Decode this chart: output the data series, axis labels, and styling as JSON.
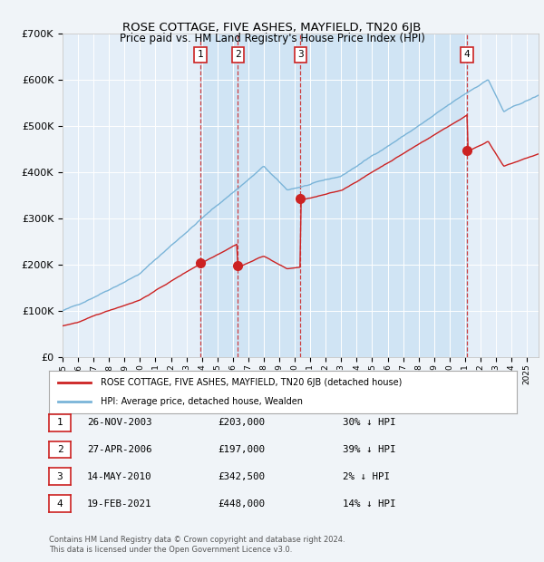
{
  "title": "ROSE COTTAGE, FIVE ASHES, MAYFIELD, TN20 6JB",
  "subtitle": "Price paid vs. HM Land Registry's House Price Index (HPI)",
  "ylim": [
    0,
    700000
  ],
  "yticks": [
    0,
    100000,
    200000,
    300000,
    400000,
    500000,
    600000,
    700000
  ],
  "ytick_labels": [
    "£0",
    "£100K",
    "£200K",
    "£300K",
    "£400K",
    "£500K",
    "£600K",
    "£700K"
  ],
  "bg_color": "#f0f4f8",
  "plot_bg_color": "#e4eef8",
  "sale_band_color": "#d0e4f4",
  "grid_color": "#ffffff",
  "hpi_color": "#7ab4d8",
  "price_color": "#cc2222",
  "legend_hpi_label": "HPI: Average price, detached house, Wealden",
  "legend_price_label": "ROSE COTTAGE, FIVE ASHES, MAYFIELD, TN20 6JB (detached house)",
  "sales": [
    {
      "num": 1,
      "date_f": 2003.9,
      "price": 203000,
      "label": "26-NOV-2003",
      "price_label": "£203,000"
    },
    {
      "num": 2,
      "date_f": 2006.32,
      "price": 197000,
      "label": "27-APR-2006",
      "price_label": "£197,000"
    },
    {
      "num": 3,
      "date_f": 2010.37,
      "price": 342500,
      "label": "14-MAY-2010",
      "price_label": "£342,500"
    },
    {
      "num": 4,
      "date_f": 2021.13,
      "price": 448000,
      "label": "19-FEB-2021",
      "price_label": "£448,000"
    }
  ],
  "table_rows": [
    {
      "num": 1,
      "date": "26-NOV-2003",
      "price": "£203,000",
      "pct": "30% ↓ HPI"
    },
    {
      "num": 2,
      "date": "27-APR-2006",
      "price": "£197,000",
      "pct": "39% ↓ HPI"
    },
    {
      "num": 3,
      "date": "14-MAY-2010",
      "price": "£342,500",
      "pct": "2% ↓ HPI"
    },
    {
      "num": 4,
      "date": "19-FEB-2021",
      "price": "£448,000",
      "pct": "14% ↓ HPI"
    }
  ],
  "footer": "Contains HM Land Registry data © Crown copyright and database right 2024.\nThis data is licensed under the Open Government Licence v3.0.",
  "xlim_start": 1995.0,
  "xlim_end": 2025.75
}
